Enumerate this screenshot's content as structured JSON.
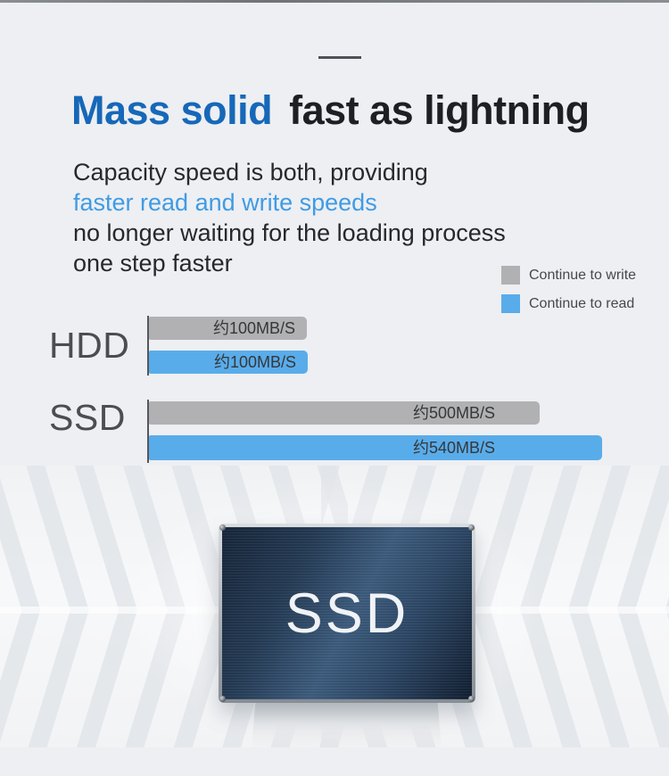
{
  "header": {
    "title_accent": "Mass solid",
    "title_main": "fast as lightning"
  },
  "intro": {
    "lines": [
      "Capacity speed is both, providing",
      "faster read and write speeds",
      "no longer waiting for the loading process",
      "one step faster"
    ]
  },
  "legend": {
    "items": [
      {
        "label": "Continue to write",
        "color": "#b1b1b3"
      },
      {
        "label": "Continue to read",
        "color": "#59acea"
      }
    ]
  },
  "chart_data": {
    "type": "bar",
    "orientation": "horizontal",
    "categories": [
      "HDD",
      "SSD"
    ],
    "series": [
      {
        "name": "Continue to write",
        "color": "#b1b1b3",
        "values": [
          100,
          500
        ],
        "value_labels": [
          "约100MB/S",
          "约500MB/S"
        ]
      },
      {
        "name": "Continue to read",
        "color": "#59acea",
        "values": [
          100,
          540
        ],
        "value_labels": [
          "约100MB/S",
          "约540MB/S"
        ]
      }
    ],
    "unit": "MB/S",
    "legend_position": "top-right",
    "grid": false
  },
  "product": {
    "label": "SSD"
  },
  "colors": {
    "title_accent_blue": "#1668b8",
    "intro_highlight_blue": "#3f9be5",
    "bar_gray": "#b1b1b3",
    "bar_blue": "#59acea",
    "background": "#edeff2",
    "drive_face_blue": "#2c4664"
  }
}
